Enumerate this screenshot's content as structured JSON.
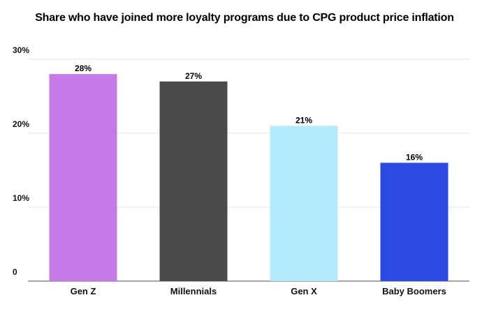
{
  "chart_data": {
    "type": "bar",
    "title": "Share who have joined more loyalty programs due to CPG product price inflation",
    "categories": [
      "Gen Z",
      "Millennials",
      "Gen X",
      "Baby Boomers"
    ],
    "values": [
      28,
      27,
      21,
      16
    ],
    "value_labels": [
      "28%",
      "27%",
      "21%",
      "16%"
    ],
    "colors": [
      "#c57ae8",
      "#4a4a4a",
      "#b3ebfd",
      "#2b4ae2"
    ],
    "xlabel": "",
    "ylabel": "",
    "ylim": [
      0,
      30
    ],
    "yticks": [
      0,
      10,
      20,
      30
    ],
    "ytick_labels": [
      "0",
      "10%",
      "20%",
      "30%"
    ],
    "grid": true,
    "legend": "none"
  }
}
